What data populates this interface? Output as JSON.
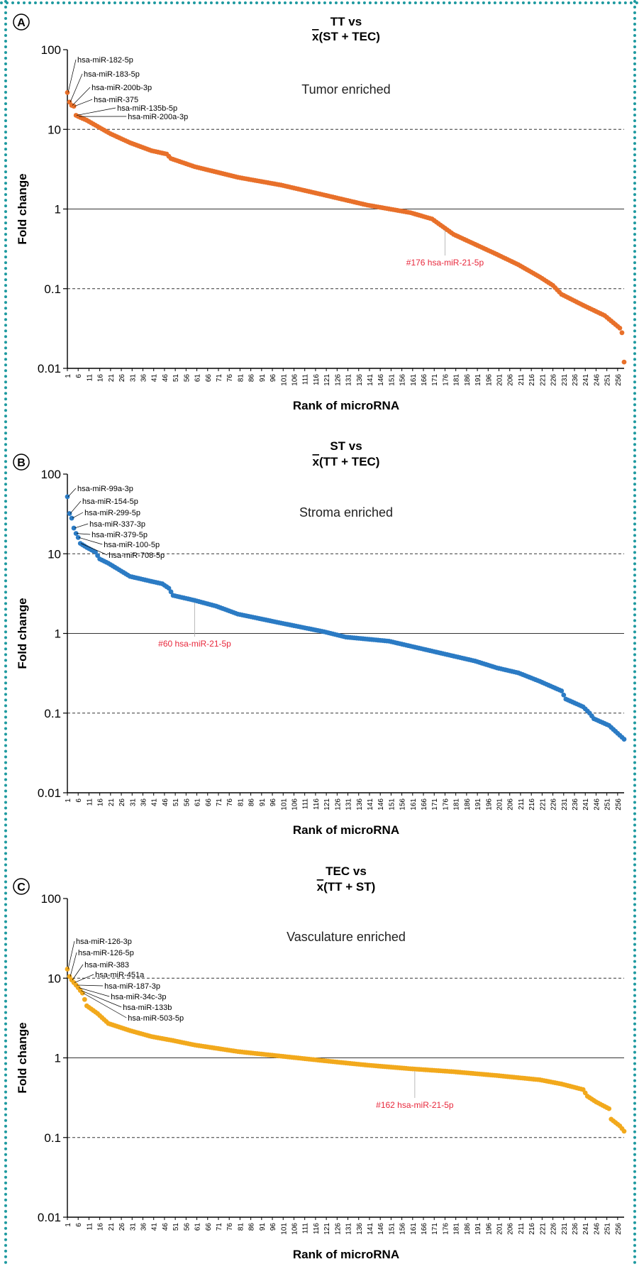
{
  "style": {
    "grid_color": "#333333",
    "axis_color": "#000000",
    "annotation_red": "#e8283c"
  },
  "chart_data": [
    {
      "type": "scatter",
      "panel_label": "A",
      "title_line1": "TT vs",
      "title_line2_bar": "x",
      "title_line2_rest": "(ST + TEC)",
      "xlabel": "Rank of microRNA",
      "ylabel": "Fold change",
      "region_label": "Tumor enriched",
      "color": "#e8702a",
      "yscale": "log",
      "ylim": [
        0.01,
        100
      ],
      "yticks": [
        "100",
        "10",
        "1",
        "0.1",
        "0.01"
      ],
      "xlim": [
        1,
        259
      ],
      "xticks": [
        1,
        6,
        11,
        16,
        21,
        26,
        31,
        36,
        41,
        46,
        51,
        56,
        61,
        66,
        71,
        76,
        81,
        86,
        91,
        96,
        101,
        106,
        111,
        116,
        121,
        126,
        131,
        136,
        141,
        146,
        151,
        156,
        161,
        166,
        171,
        176,
        181,
        186,
        191,
        196,
        201,
        206,
        211,
        216,
        221,
        226,
        231,
        236,
        241,
        246,
        251,
        256
      ],
      "hlines": [
        {
          "y": 10,
          "style": "dashed"
        },
        {
          "y": 1,
          "style": "solid"
        },
        {
          "y": 0.1,
          "style": "dashed"
        }
      ],
      "n_points": 259,
      "anchors": [
        [
          1,
          29
        ],
        [
          2,
          22
        ],
        [
          3,
          20
        ],
        [
          4,
          19.5
        ],
        [
          5,
          15
        ],
        [
          6,
          14.5
        ],
        [
          10,
          13
        ],
        [
          16,
          10.5
        ],
        [
          21,
          8.8
        ],
        [
          30,
          6.8
        ],
        [
          40,
          5.4
        ],
        [
          47,
          4.9
        ],
        [
          49,
          4.3
        ],
        [
          60,
          3.4
        ],
        [
          80,
          2.5
        ],
        [
          100,
          2.0
        ],
        [
          120,
          1.5
        ],
        [
          140,
          1.12
        ],
        [
          160,
          0.9
        ],
        [
          170,
          0.75
        ],
        [
          180,
          0.48
        ],
        [
          190,
          0.36
        ],
        [
          200,
          0.27
        ],
        [
          210,
          0.2
        ],
        [
          220,
          0.14
        ],
        [
          226,
          0.11
        ],
        [
          230,
          0.085
        ],
        [
          240,
          0.062
        ],
        [
          250,
          0.046
        ],
        [
          257,
          0.032
        ],
        [
          258,
          0.028
        ],
        [
          259,
          0.012
        ]
      ],
      "labels": [
        {
          "rank": 1,
          "text": "hsa-miR-182-5p"
        },
        {
          "rank": 2,
          "text": "hsa-miR-183-5p"
        },
        {
          "rank": 3,
          "text": "hsa-miR-200b-3p"
        },
        {
          "rank": 4,
          "text": "hsa-miR-375"
        },
        {
          "rank": 5,
          "text": "hsa-miR-135b-5p"
        },
        {
          "rank": 6,
          "text": "hsa-miR-200a-3p"
        }
      ],
      "highlight": {
        "rank": 176,
        "text": "#176 hsa-miR-21-5p"
      }
    },
    {
      "type": "scatter",
      "panel_label": "B",
      "title_line1": "ST vs",
      "title_line2_bar": "x",
      "title_line2_rest": "(TT + TEC)",
      "xlabel": "Rank of microRNA",
      "ylabel": "Fold change",
      "region_label": "Stroma enriched",
      "color": "#2b7bc4",
      "yscale": "log",
      "ylim": [
        0.01,
        100
      ],
      "yticks": [
        "100",
        "10",
        "1",
        "0.1",
        "0.01"
      ],
      "xlim": [
        1,
        259
      ],
      "xticks": [
        1,
        6,
        11,
        16,
        21,
        26,
        31,
        36,
        41,
        46,
        51,
        56,
        61,
        66,
        71,
        76,
        81,
        86,
        91,
        96,
        101,
        106,
        111,
        116,
        121,
        126,
        131,
        136,
        141,
        146,
        151,
        156,
        161,
        166,
        171,
        176,
        181,
        186,
        191,
        196,
        201,
        206,
        211,
        216,
        221,
        226,
        231,
        236,
        241,
        246,
        251,
        256
      ],
      "hlines": [
        {
          "y": 10,
          "style": "dashed"
        },
        {
          "y": 1,
          "style": "solid"
        },
        {
          "y": 0.1,
          "style": "dashed"
        }
      ],
      "n_points": 259,
      "anchors": [
        [
          1,
          52
        ],
        [
          2,
          32
        ],
        [
          3,
          28
        ],
        [
          4,
          21
        ],
        [
          5,
          18
        ],
        [
          6,
          16
        ],
        [
          7,
          13.5
        ],
        [
          10,
          12
        ],
        [
          14,
          10.5
        ],
        [
          16,
          8.6
        ],
        [
          20,
          7.6
        ],
        [
          30,
          5.2
        ],
        [
          40,
          4.5
        ],
        [
          45,
          4.2
        ],
        [
          48,
          3.7
        ],
        [
          50,
          3.0
        ],
        [
          60,
          2.6
        ],
        [
          70,
          2.2
        ],
        [
          80,
          1.75
        ],
        [
          100,
          1.35
        ],
        [
          120,
          1.05
        ],
        [
          130,
          0.9
        ],
        [
          150,
          0.8
        ],
        [
          170,
          0.6
        ],
        [
          190,
          0.45
        ],
        [
          200,
          0.37
        ],
        [
          210,
          0.32
        ],
        [
          220,
          0.25
        ],
        [
          230,
          0.19
        ],
        [
          232,
          0.15
        ],
        [
          240,
          0.12
        ],
        [
          243,
          0.1
        ],
        [
          245,
          0.085
        ],
        [
          252,
          0.07
        ],
        [
          259,
          0.047
        ]
      ],
      "labels": [
        {
          "rank": 1,
          "text": "hsa-miR-99a-3p"
        },
        {
          "rank": 2,
          "text": "hsa-miR-154-5p"
        },
        {
          "rank": 3,
          "text": "hsa-miR-299-5p"
        },
        {
          "rank": 4,
          "text": "hsa-miR-337-3p"
        },
        {
          "rank": 5,
          "text": "hsa-miR-379-5p"
        },
        {
          "rank": 6,
          "text": "hsa-miR-100-5p"
        },
        {
          "rank": 7,
          "text": "hsa-miR-708-5p"
        }
      ],
      "highlight": {
        "rank": 60,
        "text": "#60 hsa-miR-21-5p"
      }
    },
    {
      "type": "scatter",
      "panel_label": "C",
      "title_line1": "TEC vs",
      "title_line2_bar": "x",
      "title_line2_rest": "(TT + ST)",
      "xlabel": "Rank of microRNA",
      "ylabel": "Fold change",
      "region_label": "Vasculature enriched",
      "color": "#f2a91c",
      "yscale": "log",
      "ylim": [
        0.01,
        100
      ],
      "yticks": [
        "100",
        "10",
        "1",
        "0.1",
        "0.01"
      ],
      "xlim": [
        1,
        259
      ],
      "xticks": [
        1,
        6,
        11,
        16,
        21,
        26,
        31,
        36,
        41,
        46,
        51,
        56,
        61,
        66,
        71,
        76,
        81,
        86,
        91,
        96,
        101,
        106,
        111,
        116,
        121,
        126,
        131,
        136,
        141,
        146,
        151,
        156,
        161,
        166,
        171,
        176,
        181,
        186,
        191,
        196,
        201,
        206,
        211,
        216,
        221,
        226,
        231,
        236,
        241,
        246,
        251,
        256
      ],
      "hlines": [
        {
          "y": 10,
          "style": "dashed"
        },
        {
          "y": 1,
          "style": "solid"
        },
        {
          "y": 0.1,
          "style": "dashed"
        }
      ],
      "n_points": 259,
      "anchors": [
        [
          1,
          13
        ],
        [
          2,
          10.5
        ],
        [
          3,
          9.5
        ],
        [
          4,
          8.8
        ],
        [
          5,
          8.2
        ],
        [
          6,
          7.6
        ],
        [
          7,
          7.0
        ],
        [
          8,
          6.5
        ],
        [
          10,
          4.5
        ],
        [
          15,
          3.6
        ],
        [
          20,
          2.7
        ],
        [
          30,
          2.2
        ],
        [
          40,
          1.85
        ],
        [
          50,
          1.65
        ],
        [
          60,
          1.45
        ],
        [
          80,
          1.2
        ],
        [
          100,
          1.05
        ],
        [
          120,
          0.92
        ],
        [
          140,
          0.81
        ],
        [
          160,
          0.73
        ],
        [
          180,
          0.67
        ],
        [
          200,
          0.6
        ],
        [
          220,
          0.53
        ],
        [
          230,
          0.47
        ],
        [
          240,
          0.4
        ],
        [
          242,
          0.33
        ],
        [
          246,
          0.28
        ],
        [
          252,
          0.23
        ],
        [
          253,
          0.17
        ],
        [
          257,
          0.14
        ],
        [
          259,
          0.12
        ]
      ],
      "labels": [
        {
          "rank": 1,
          "text": "hsa-miR-126-3p"
        },
        {
          "rank": 2,
          "text": "hsa-miR-126-5p"
        },
        {
          "rank": 3,
          "text": "hsa-miR-383"
        },
        {
          "rank": 4,
          "text": "hsa-miR-451a"
        },
        {
          "rank": 5,
          "text": "hsa-miR-187-3p"
        },
        {
          "rank": 6,
          "text": "hsa-miR-34c-3p"
        },
        {
          "rank": 7,
          "text": "hsa-miR-133b"
        },
        {
          "rank": 8,
          "text": "hsa-miR-503-5p"
        }
      ],
      "highlight": {
        "rank": 162,
        "text": "#162 hsa-miR-21-5p"
      }
    }
  ]
}
